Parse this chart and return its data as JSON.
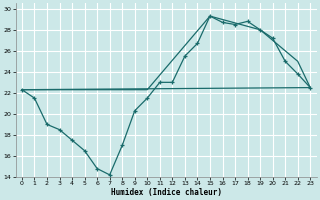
{
  "xlabel": "Humidex (Indice chaleur)",
  "xlim": [
    -0.5,
    23.5
  ],
  "ylim": [
    14,
    30.5
  ],
  "yticks": [
    14,
    16,
    18,
    20,
    22,
    24,
    26,
    28,
    30
  ],
  "xticks": [
    0,
    1,
    2,
    3,
    4,
    5,
    6,
    7,
    8,
    9,
    10,
    11,
    12,
    13,
    14,
    15,
    16,
    17,
    18,
    19,
    20,
    21,
    22,
    23
  ],
  "bg_color": "#cce8e8",
  "grid_color": "#ffffff",
  "line_color": "#1a6b6b",
  "line1_x": [
    0,
    1,
    2,
    3,
    4,
    5,
    6,
    7,
    8,
    9,
    10,
    11,
    12,
    13,
    14,
    15,
    16,
    17,
    18,
    19,
    20,
    21,
    22,
    23
  ],
  "line1_y": [
    22.3,
    21.5,
    19.0,
    18.5,
    17.5,
    16.5,
    14.8,
    14.2,
    17.0,
    20.3,
    21.5,
    23.0,
    23.0,
    25.5,
    26.7,
    29.3,
    28.7,
    28.5,
    28.8,
    28.0,
    27.2,
    25.0,
    23.8,
    22.5
  ],
  "line2_x": [
    0,
    10,
    15,
    19,
    22,
    23
  ],
  "line2_y": [
    22.3,
    22.3,
    29.3,
    28.0,
    25.0,
    22.5
  ],
  "line3_x": [
    0,
    23
  ],
  "line3_y": [
    22.3,
    22.5
  ]
}
